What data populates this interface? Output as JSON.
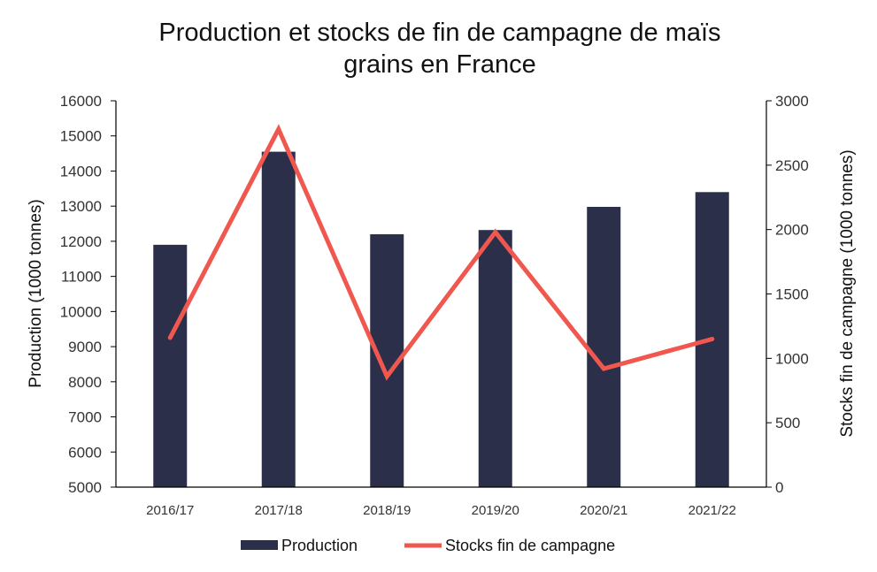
{
  "chart_data": {
    "type": "bar",
    "title_line1": "Production et stocks de fin de campagne de maïs",
    "title_line2": "grains en France",
    "categories": [
      "2016/17",
      "2017/18",
      "2018/19",
      "2019/20",
      "2020/21",
      "2021/22"
    ],
    "series": [
      {
        "name": "Production",
        "type": "bar",
        "axis": "left",
        "color": "#2b2f4a",
        "values": [
          11900,
          14550,
          12200,
          12320,
          12980,
          13400
        ]
      },
      {
        "name": "Stocks fin de campagne",
        "type": "line",
        "axis": "right",
        "color": "#f0584f",
        "values": [
          1160,
          2780,
          860,
          1980,
          920,
          1150
        ]
      }
    ],
    "ylabel_left": "Production (1000 tonnes)",
    "ylabel_right": "Stocks  fin de campagne (1000 tonnes)",
    "ylim_left": [
      5000,
      16000
    ],
    "yticks_left": [
      5000,
      6000,
      7000,
      8000,
      9000,
      10000,
      11000,
      12000,
      13000,
      14000,
      15000,
      16000
    ],
    "ylim_right": [
      0,
      3000
    ],
    "yticks_right": [
      0,
      500,
      1000,
      1500,
      2000,
      2500,
      3000
    ],
    "grid": false,
    "legend_position": "bottom"
  }
}
